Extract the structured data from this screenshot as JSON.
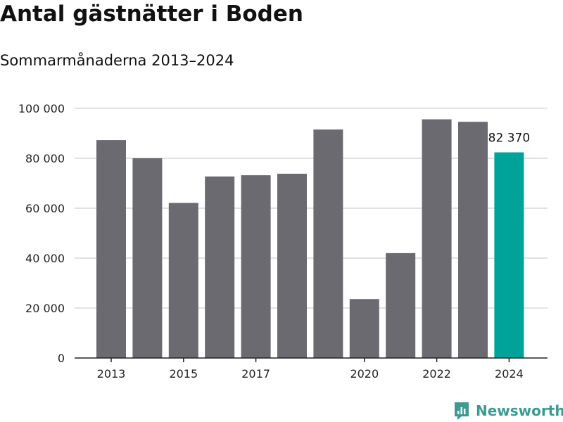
{
  "title": "Antal gästnätter i Boden",
  "subtitle": "Sommarmånaderna 2013–2024",
  "logo_text": "Newsworthy",
  "colors": {
    "bar": "#6b6a71",
    "highlight": "#00a39a",
    "grid": "#d9d9d9",
    "axis": "#222222",
    "logo": "#3a9b93"
  },
  "chart_data": {
    "type": "bar",
    "categories": [
      "2013",
      "2014",
      "2015",
      "2016",
      "2017",
      "2018",
      "2019",
      "2020",
      "2021",
      "2022",
      "2023",
      "2024"
    ],
    "values": [
      87300,
      80000,
      62100,
      72700,
      73200,
      73800,
      91500,
      23600,
      42000,
      95600,
      94600,
      82370
    ],
    "highlight_index": 11,
    "highlight_label": "82 370",
    "ylim": [
      0,
      100000
    ],
    "yticks": [
      0,
      20000,
      40000,
      60000,
      80000,
      100000
    ],
    "ytick_labels": [
      "0",
      "20 000",
      "40 000",
      "60 000",
      "80 000",
      "100 000"
    ],
    "xtick_labels": [
      "2013",
      "2015",
      "2017",
      "2020",
      "2022",
      "2024"
    ],
    "xtick_indices": [
      0,
      2,
      4,
      7,
      9,
      11
    ],
    "xlabel": "",
    "ylabel": "",
    "grid": true
  }
}
